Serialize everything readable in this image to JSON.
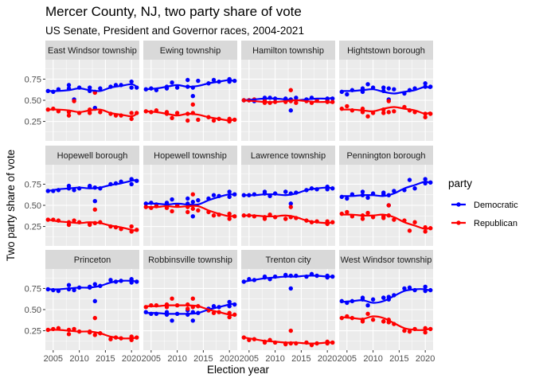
{
  "title": "Mercer County, NJ, two party share of vote",
  "subtitle": "US Senate, President and Governor races, 2004-2021",
  "chart_data": {
    "type": "scatter",
    "subtype": "faceted scatter with loess smoothing lines",
    "xlabel": "Election year",
    "ylabel": "Two party share of vote",
    "xlim": [
      2003.5,
      2021.5
    ],
    "ylim": [
      0.02,
      0.98
    ],
    "x_ticks": [
      2005,
      2010,
      2015,
      2020
    ],
    "y_ticks": [
      0.25,
      0.5,
      0.75
    ],
    "y_tick_labels": [
      "0.25",
      "0.50",
      "0.75"
    ],
    "grid": true,
    "legend": {
      "title": "party",
      "position": "right",
      "entries": [
        {
          "label": "Democratic",
          "color": "#0000ff"
        },
        {
          "label": "Republican",
          "color": "#ff0000"
        }
      ]
    },
    "x": [
      2004,
      2005,
      2006,
      2008,
      2008,
      2009,
      2010,
      2012,
      2012,
      2013,
      2013,
      2014,
      2016,
      2017,
      2018,
      2020,
      2020,
      2021
    ],
    "facets": [
      {
        "name": "East Windsor township",
        "dem": [
          0.61,
          0.6,
          0.63,
          0.64,
          0.68,
          0.51,
          0.65,
          0.65,
          0.61,
          0.6,
          0.41,
          0.64,
          0.66,
          0.68,
          0.68,
          0.65,
          0.72,
          0.65
        ],
        "rep": [
          0.39,
          0.4,
          0.37,
          0.36,
          0.32,
          0.49,
          0.35,
          0.35,
          0.39,
          0.4,
          0.59,
          0.36,
          0.34,
          0.32,
          0.32,
          0.35,
          0.28,
          0.35
        ]
      },
      {
        "name": "Ewing township",
        "dem": [
          0.63,
          0.64,
          0.62,
          0.64,
          0.66,
          0.71,
          0.65,
          0.66,
          0.74,
          0.55,
          0.65,
          0.73,
          0.7,
          0.74,
          0.72,
          0.72,
          0.75,
          0.73
        ],
        "rep": [
          0.37,
          0.36,
          0.38,
          0.36,
          0.34,
          0.29,
          0.35,
          0.34,
          0.26,
          0.45,
          0.35,
          0.27,
          0.3,
          0.26,
          0.28,
          0.28,
          0.25,
          0.27
        ]
      },
      {
        "name": "Hamilton township",
        "dem": [
          0.5,
          0.5,
          0.49,
          0.53,
          0.51,
          0.53,
          0.52,
          0.51,
          0.52,
          0.38,
          0.51,
          0.53,
          0.51,
          0.53,
          0.5,
          0.5,
          0.52,
          0.52
        ],
        "rep": [
          0.5,
          0.5,
          0.51,
          0.47,
          0.49,
          0.47,
          0.48,
          0.49,
          0.48,
          0.62,
          0.49,
          0.47,
          0.49,
          0.47,
          0.5,
          0.5,
          0.48,
          0.48
        ]
      },
      {
        "name": "Hightstown borough",
        "dem": [
          0.6,
          0.57,
          0.62,
          0.64,
          0.6,
          0.69,
          0.65,
          0.61,
          0.65,
          0.51,
          0.64,
          0.63,
          0.58,
          0.62,
          0.64,
          0.66,
          0.7,
          0.66
        ],
        "rep": [
          0.4,
          0.43,
          0.38,
          0.36,
          0.4,
          0.31,
          0.35,
          0.39,
          0.35,
          0.49,
          0.36,
          0.37,
          0.42,
          0.38,
          0.36,
          0.34,
          0.3,
          0.34
        ]
      },
      {
        "name": "Hopewell borough",
        "dem": [
          0.67,
          0.67,
          0.68,
          0.7,
          0.73,
          0.68,
          0.7,
          0.72,
          0.73,
          0.55,
          0.71,
          0.7,
          0.75,
          0.76,
          0.78,
          0.75,
          0.81,
          0.79
        ],
        "rep": [
          0.33,
          0.33,
          0.32,
          0.3,
          0.27,
          0.32,
          0.3,
          0.28,
          0.27,
          0.45,
          0.29,
          0.3,
          0.25,
          0.24,
          0.22,
          0.25,
          0.19,
          0.21
        ]
      },
      {
        "name": "Hopewell township",
        "dem": [
          0.52,
          0.53,
          0.51,
          0.5,
          0.53,
          0.57,
          0.5,
          0.52,
          0.58,
          0.37,
          0.54,
          0.56,
          0.58,
          0.62,
          0.61,
          0.6,
          0.66,
          0.63
        ],
        "rep": [
          0.48,
          0.47,
          0.49,
          0.5,
          0.47,
          0.43,
          0.5,
          0.48,
          0.42,
          0.63,
          0.46,
          0.44,
          0.42,
          0.38,
          0.39,
          0.4,
          0.34,
          0.37
        ]
      },
      {
        "name": "Lawrence township",
        "dem": [
          0.62,
          0.62,
          0.63,
          0.64,
          0.66,
          0.61,
          0.64,
          0.66,
          0.66,
          0.52,
          0.64,
          0.65,
          0.68,
          0.7,
          0.69,
          0.69,
          0.72,
          0.7
        ],
        "rep": [
          0.38,
          0.38,
          0.37,
          0.36,
          0.34,
          0.39,
          0.36,
          0.34,
          0.34,
          0.48,
          0.36,
          0.35,
          0.32,
          0.3,
          0.31,
          0.31,
          0.28,
          0.3
        ]
      },
      {
        "name": "Pennington borough",
        "dem": [
          0.6,
          0.58,
          0.63,
          0.62,
          0.66,
          0.59,
          0.64,
          0.63,
          0.65,
          0.5,
          0.62,
          0.67,
          0.68,
          0.8,
          0.7,
          0.76,
          0.81,
          0.77
        ],
        "rep": [
          0.4,
          0.42,
          0.37,
          0.38,
          0.34,
          0.41,
          0.36,
          0.37,
          0.35,
          0.5,
          0.38,
          0.33,
          0.32,
          0.2,
          0.3,
          0.24,
          0.19,
          0.23
        ]
      },
      {
        "name": "Princeton",
        "dem": [
          0.74,
          0.73,
          0.72,
          0.74,
          0.79,
          0.73,
          0.76,
          0.76,
          0.77,
          0.6,
          0.8,
          0.78,
          0.85,
          0.83,
          0.84,
          0.82,
          0.86,
          0.83
        ],
        "rep": [
          0.26,
          0.27,
          0.28,
          0.26,
          0.21,
          0.27,
          0.24,
          0.24,
          0.23,
          0.4,
          0.2,
          0.22,
          0.15,
          0.17,
          0.16,
          0.18,
          0.14,
          0.17
        ]
      },
      {
        "name": "Robbinsville township",
        "dem": [
          0.47,
          0.45,
          0.45,
          0.44,
          0.47,
          0.37,
          0.45,
          0.49,
          0.44,
          0.37,
          0.47,
          0.46,
          0.51,
          0.54,
          0.53,
          0.54,
          0.59,
          0.56
        ],
        "rep": [
          0.53,
          0.55,
          0.55,
          0.56,
          0.53,
          0.63,
          0.55,
          0.51,
          0.56,
          0.63,
          0.53,
          0.54,
          0.49,
          0.46,
          0.47,
          0.46,
          0.41,
          0.44
        ]
      },
      {
        "name": "Trenton city",
        "dem": [
          0.83,
          0.86,
          0.85,
          0.88,
          0.89,
          0.86,
          0.89,
          0.9,
          0.91,
          0.75,
          0.9,
          0.9,
          0.89,
          0.92,
          0.9,
          0.88,
          0.9,
          0.89
        ],
        "rep": [
          0.17,
          0.14,
          0.15,
          0.12,
          0.11,
          0.14,
          0.11,
          0.1,
          0.09,
          0.25,
          0.1,
          0.1,
          0.11,
          0.08,
          0.1,
          0.12,
          0.1,
          0.11
        ]
      },
      {
        "name": "West Windsor township",
        "dem": [
          0.6,
          0.58,
          0.6,
          0.62,
          0.64,
          0.55,
          0.62,
          0.64,
          0.64,
          0.62,
          0.65,
          0.67,
          0.75,
          0.76,
          0.73,
          0.72,
          0.77,
          0.73
        ],
        "rep": [
          0.4,
          0.42,
          0.4,
          0.38,
          0.36,
          0.45,
          0.38,
          0.36,
          0.36,
          0.38,
          0.35,
          0.33,
          0.25,
          0.24,
          0.27,
          0.28,
          0.23,
          0.27
        ]
      }
    ],
    "smooth": {
      "x": [
        2004,
        2006,
        2008,
        2010,
        2012,
        2014,
        2016,
        2018,
        2020,
        2021
      ],
      "series": [
        {
          "dem": [
            0.61,
            0.61,
            0.62,
            0.64,
            0.62,
            0.61,
            0.65,
            0.67,
            0.69,
            0.66
          ],
          "rep": [
            0.39,
            0.39,
            0.38,
            0.36,
            0.38,
            0.39,
            0.35,
            0.33,
            0.31,
            0.34
          ]
        },
        {
          "dem": [
            0.63,
            0.64,
            0.66,
            0.68,
            0.66,
            0.67,
            0.7,
            0.72,
            0.74,
            0.72
          ],
          "rep": [
            0.37,
            0.36,
            0.34,
            0.32,
            0.34,
            0.33,
            0.3,
            0.28,
            0.26,
            0.28
          ]
        },
        {
          "dem": [
            0.5,
            0.51,
            0.52,
            0.52,
            0.51,
            0.5,
            0.51,
            0.52,
            0.52,
            0.53
          ],
          "rep": [
            0.5,
            0.49,
            0.48,
            0.48,
            0.49,
            0.5,
            0.49,
            0.48,
            0.48,
            0.47
          ]
        },
        {
          "dem": [
            0.61,
            0.61,
            0.62,
            0.63,
            0.6,
            0.58,
            0.6,
            0.62,
            0.66,
            0.64
          ],
          "rep": [
            0.39,
            0.39,
            0.38,
            0.37,
            0.4,
            0.42,
            0.4,
            0.38,
            0.34,
            0.36
          ]
        },
        {
          "dem": [
            0.67,
            0.69,
            0.7,
            0.71,
            0.7,
            0.71,
            0.74,
            0.76,
            0.79,
            0.8
          ],
          "rep": [
            0.33,
            0.31,
            0.3,
            0.29,
            0.3,
            0.29,
            0.26,
            0.24,
            0.21,
            0.2
          ]
        },
        {
          "dem": [
            0.52,
            0.52,
            0.51,
            0.52,
            0.51,
            0.51,
            0.56,
            0.6,
            0.63,
            0.62
          ],
          "rep": [
            0.48,
            0.48,
            0.49,
            0.48,
            0.49,
            0.49,
            0.44,
            0.4,
            0.37,
            0.38
          ]
        },
        {
          "dem": [
            0.62,
            0.62,
            0.63,
            0.63,
            0.62,
            0.64,
            0.68,
            0.7,
            0.71,
            0.7
          ],
          "rep": [
            0.38,
            0.38,
            0.37,
            0.37,
            0.38,
            0.36,
            0.32,
            0.3,
            0.29,
            0.3
          ]
        },
        {
          "dem": [
            0.61,
            0.61,
            0.62,
            0.62,
            0.61,
            0.64,
            0.7,
            0.74,
            0.78,
            0.76
          ],
          "rep": [
            0.39,
            0.39,
            0.38,
            0.38,
            0.39,
            0.36,
            0.3,
            0.26,
            0.22,
            0.24
          ]
        },
        {
          "dem": [
            0.74,
            0.74,
            0.75,
            0.76,
            0.76,
            0.78,
            0.82,
            0.84,
            0.84,
            0.83
          ],
          "rep": [
            0.26,
            0.26,
            0.25,
            0.24,
            0.24,
            0.22,
            0.18,
            0.16,
            0.16,
            0.17
          ]
        },
        {
          "dem": [
            0.46,
            0.46,
            0.45,
            0.45,
            0.45,
            0.46,
            0.5,
            0.53,
            0.56,
            0.57
          ],
          "rep": [
            0.54,
            0.54,
            0.55,
            0.55,
            0.55,
            0.54,
            0.5,
            0.47,
            0.44,
            0.43
          ]
        },
        {
          "dem": [
            0.83,
            0.85,
            0.87,
            0.88,
            0.89,
            0.89,
            0.9,
            0.9,
            0.89,
            0.89
          ],
          "rep": [
            0.17,
            0.15,
            0.13,
            0.12,
            0.11,
            0.11,
            0.1,
            0.1,
            0.11,
            0.11
          ]
        },
        {
          "dem": [
            0.59,
            0.6,
            0.61,
            0.58,
            0.6,
            0.66,
            0.72,
            0.74,
            0.74,
            0.72
          ],
          "rep": [
            0.41,
            0.4,
            0.39,
            0.42,
            0.4,
            0.34,
            0.28,
            0.26,
            0.26,
            0.28
          ]
        }
      ]
    }
  },
  "colors": {
    "panel_background": "#ebebeb",
    "strip_background": "#d9d9d9",
    "grid_major": "#ffffff",
    "democratic": "#0000ff",
    "republican": "#ff0000"
  }
}
